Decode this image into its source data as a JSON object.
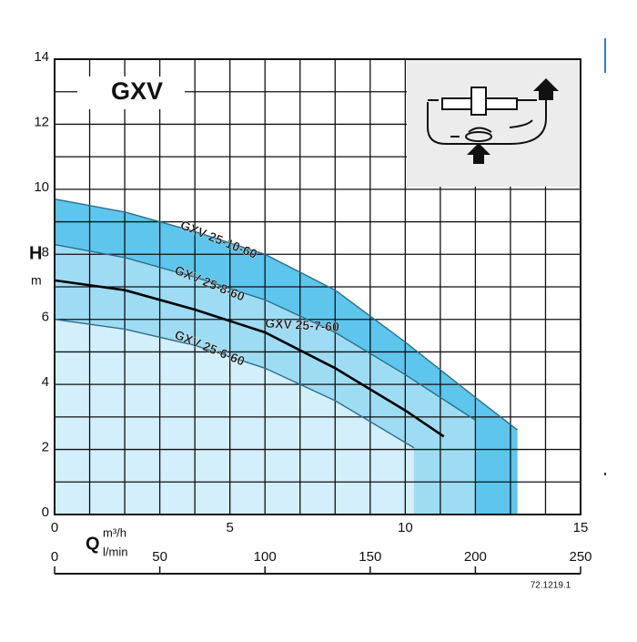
{
  "chart_data": {
    "type": "line",
    "title": "GXV",
    "y_label": "H",
    "y_unit": "m",
    "x_label": "Q",
    "x_unit": "m³/h",
    "x2_unit": "l/min",
    "code": "72.1219.1",
    "xlim": [
      0,
      15
    ],
    "xticks": [
      0,
      5,
      10,
      15
    ],
    "x2lim": [
      0,
      250
    ],
    "x2ticks": [
      0,
      50,
      100,
      150,
      200,
      250
    ],
    "ylim": [
      0,
      14
    ],
    "yticks": [
      0,
      2,
      4,
      6,
      8,
      10,
      12,
      14
    ],
    "grid": true,
    "series": [
      {
        "name": "GXV 25-10-60",
        "color": "#2b6f8c",
        "fill": "#5ec5ec",
        "x": [
          0,
          2,
          4,
          6,
          8,
          10,
          12,
          13.2
        ],
        "values": [
          9.7,
          9.3,
          8.7,
          8.0,
          6.9,
          5.3,
          3.6,
          2.6
        ]
      },
      {
        "name": "GXV 25-8-60",
        "color": "#2b6f8c",
        "fill": "#9edcf3",
        "x": [
          0,
          2,
          4,
          6,
          8,
          10,
          12
        ],
        "values": [
          8.3,
          7.9,
          7.3,
          6.6,
          5.6,
          4.3,
          2.9
        ]
      },
      {
        "name": "GXV 25-7-60",
        "color": "#000000",
        "x": [
          0,
          2,
          4,
          6,
          8,
          10,
          11.1
        ],
        "values": [
          7.2,
          6.9,
          6.3,
          5.6,
          4.5,
          3.2,
          2.4
        ]
      },
      {
        "name": "GXV 25-6-60",
        "color": "#2b6f8c",
        "fill": "#d3effb",
        "x": [
          0,
          2,
          4,
          6,
          8,
          10.25
        ],
        "values": [
          6.0,
          5.7,
          5.2,
          4.5,
          3.5,
          2.05
        ]
      }
    ]
  }
}
